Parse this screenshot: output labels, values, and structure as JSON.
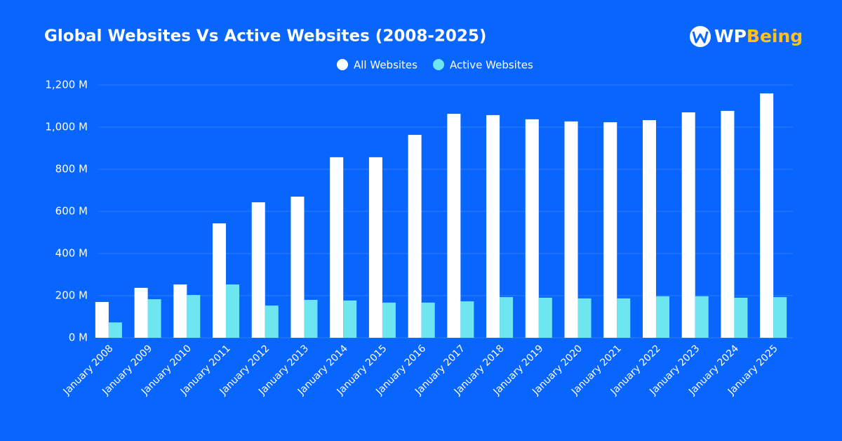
{
  "brand": {
    "prefix": "WP",
    "suffix": "Being"
  },
  "chart_data": {
    "type": "bar",
    "title": "Global Websites Vs Active Websites (2008-2025)",
    "categories": [
      "January 2008",
      "January 2009",
      "January 2010",
      "January 2011",
      "January 2012",
      "January 2013",
      "January 2014",
      "January 2015",
      "January 2016",
      "January 2017",
      "January 2018",
      "January 2019",
      "January 2020",
      "January 2021",
      "January 2022",
      "January 2023",
      "January 2024",
      "January 2025"
    ],
    "series": [
      {
        "name": "All Websites",
        "color": "#ffffff",
        "values": [
          170,
          237,
          253,
          543,
          643,
          670,
          857,
          857,
          963,
          1063,
          1057,
          1037,
          1027,
          1023,
          1033,
          1070,
          1077,
          1160
        ]
      },
      {
        "name": "Active Websites",
        "color": "#6ee6f0",
        "values": [
          73,
          183,
          203,
          253,
          153,
          180,
          177,
          167,
          167,
          173,
          193,
          190,
          187,
          187,
          197,
          197,
          190,
          193
        ]
      }
    ],
    "ylim": [
      0,
      1200
    ],
    "yticks": [
      {
        "value": 0,
        "label": "0 M"
      },
      {
        "value": 200,
        "label": "200 M"
      },
      {
        "value": 400,
        "label": "400 M"
      },
      {
        "value": 600,
        "label": "600 M"
      },
      {
        "value": 800,
        "label": "800 M"
      },
      {
        "value": 1000,
        "label": "1,000 M"
      },
      {
        "value": 1200,
        "label": "1,200 M"
      }
    ],
    "grid": true,
    "legend": "top"
  }
}
